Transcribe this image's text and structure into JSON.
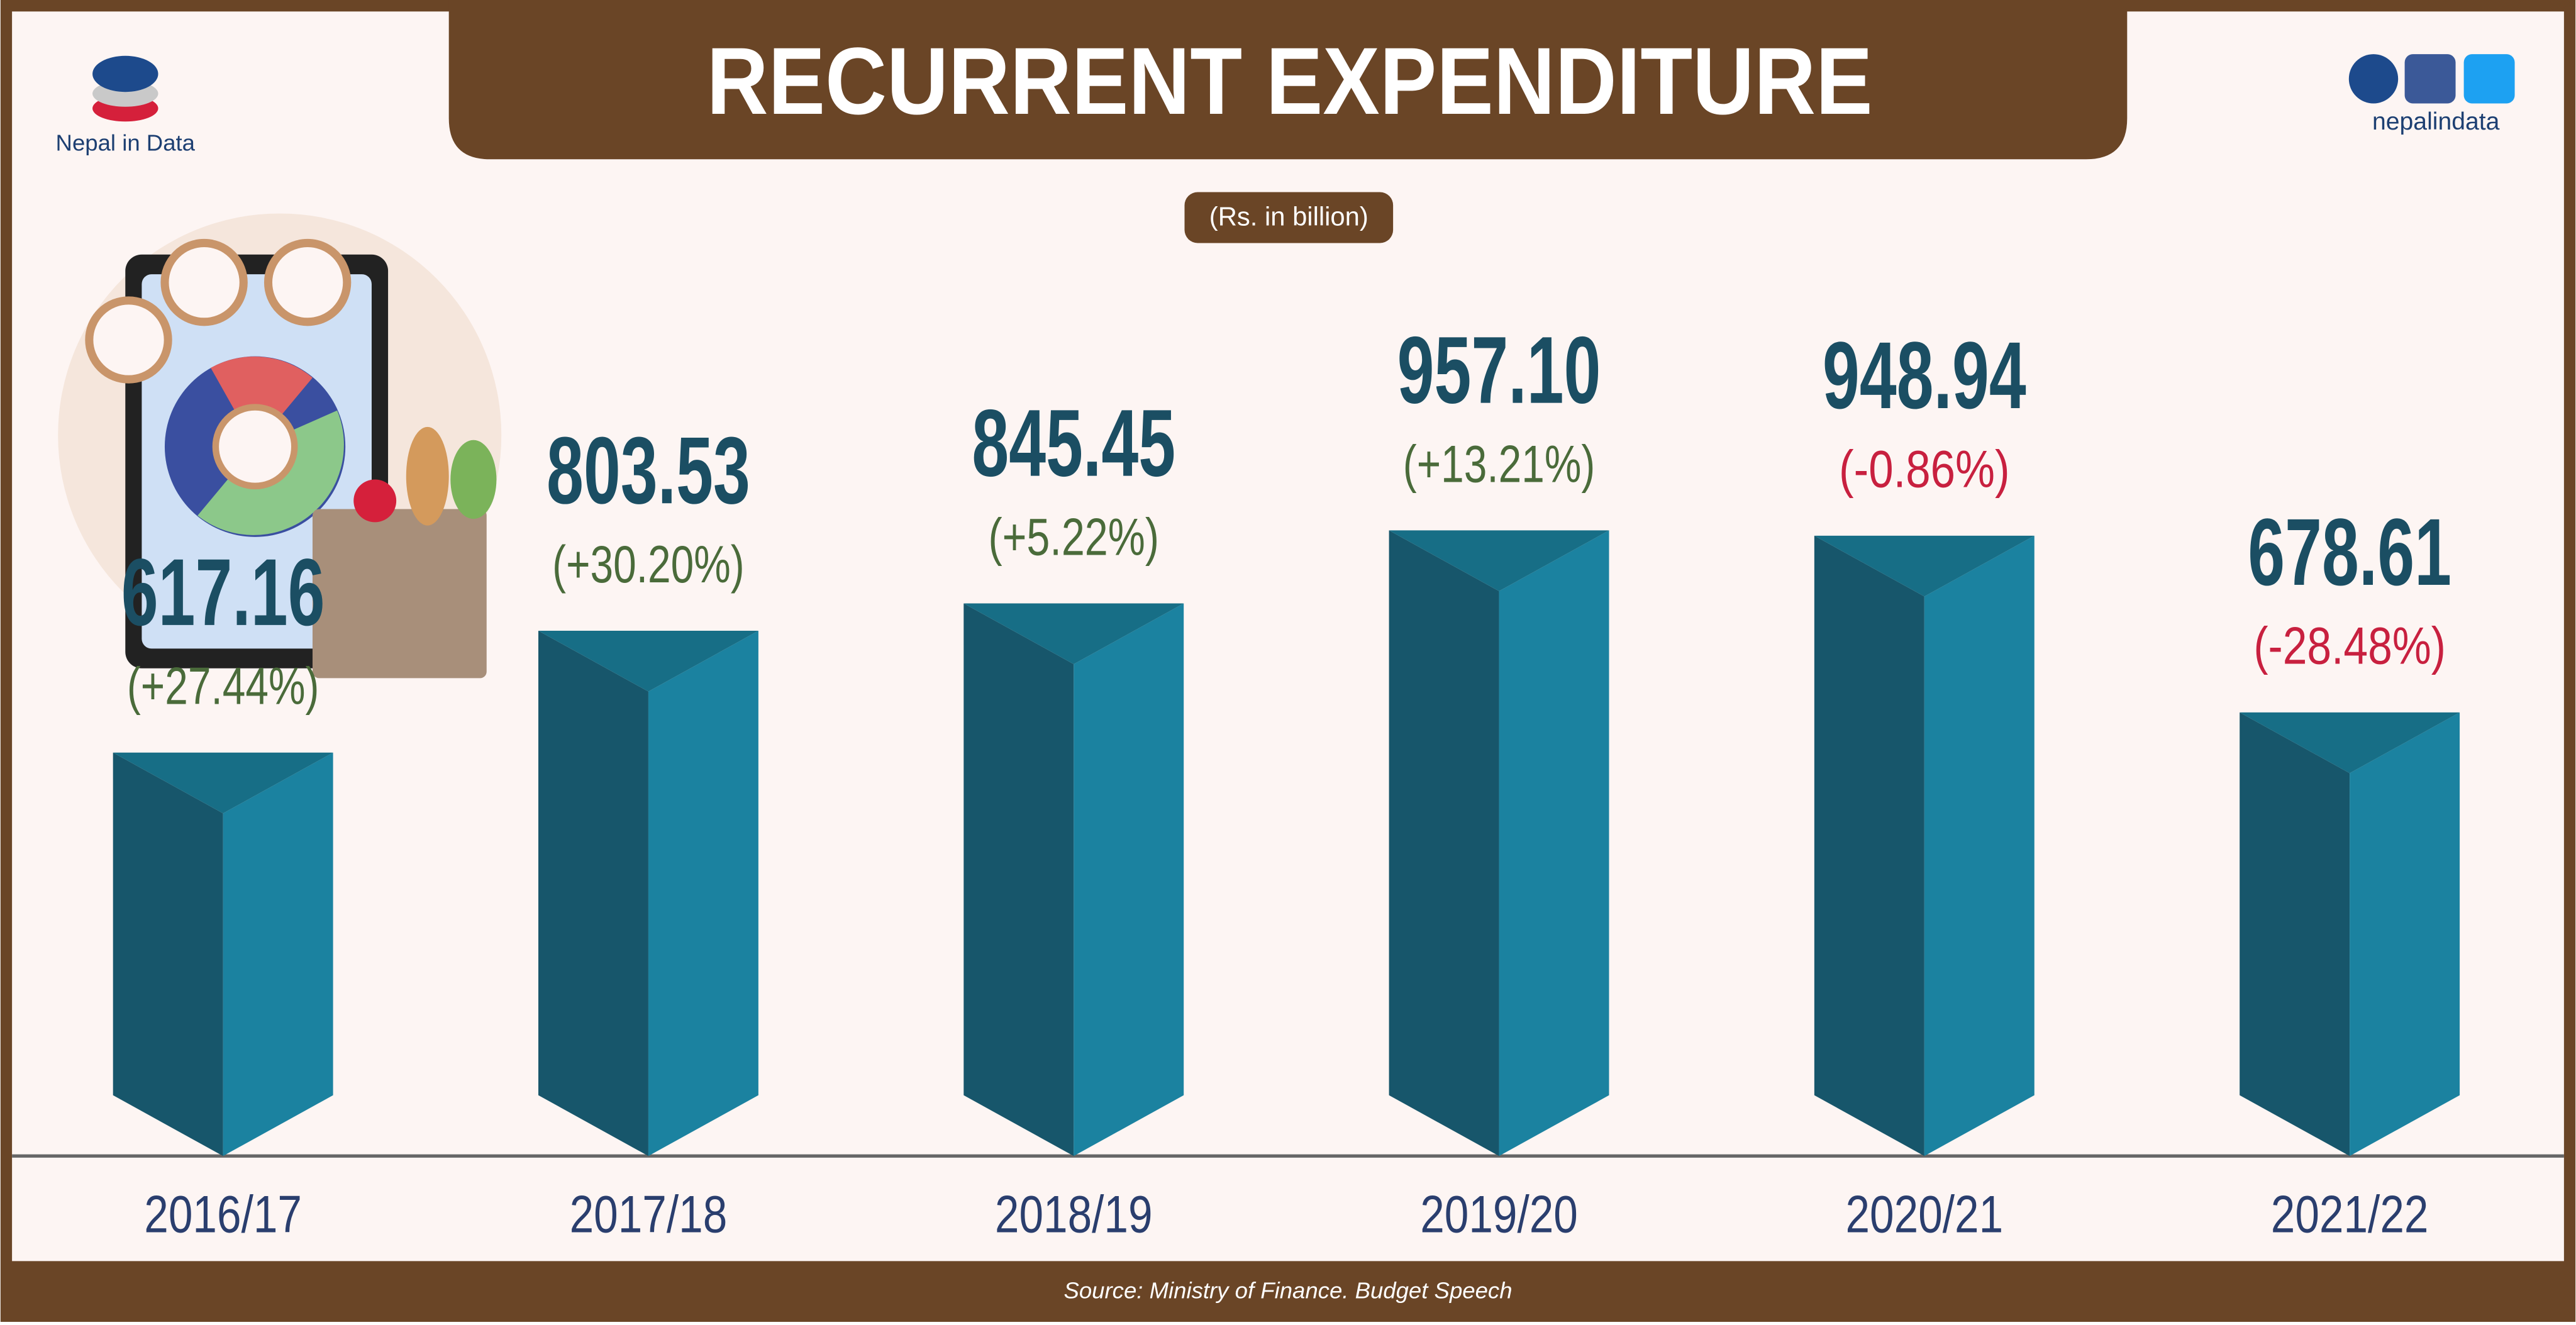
{
  "chart_data": {
    "type": "bar",
    "title": "RECURRENT EXPENDITURE",
    "subtitle": "(Rs. in billion)",
    "categories": [
      "2016/17",
      "2017/18",
      "2018/19",
      "2019/20",
      "2020/21",
      "2021/22"
    ],
    "values": [
      617.16,
      803.53,
      845.45,
      957.1,
      948.94,
      678.61
    ],
    "value_labels": [
      "617.16",
      "803.53",
      "845.45",
      "957.10",
      "948.94",
      "678.61"
    ],
    "changes": [
      "(+27.44%)",
      "(+30.20%)",
      "(+5.22%)",
      "(+13.21%)",
      "(-0.86%)",
      "(-28.48%)"
    ],
    "color": "#1b82a0",
    "source": "Source: Ministry of Finance. Budget Speech",
    "brand": "Nepal in Data",
    "handle": "nepalindata"
  }
}
